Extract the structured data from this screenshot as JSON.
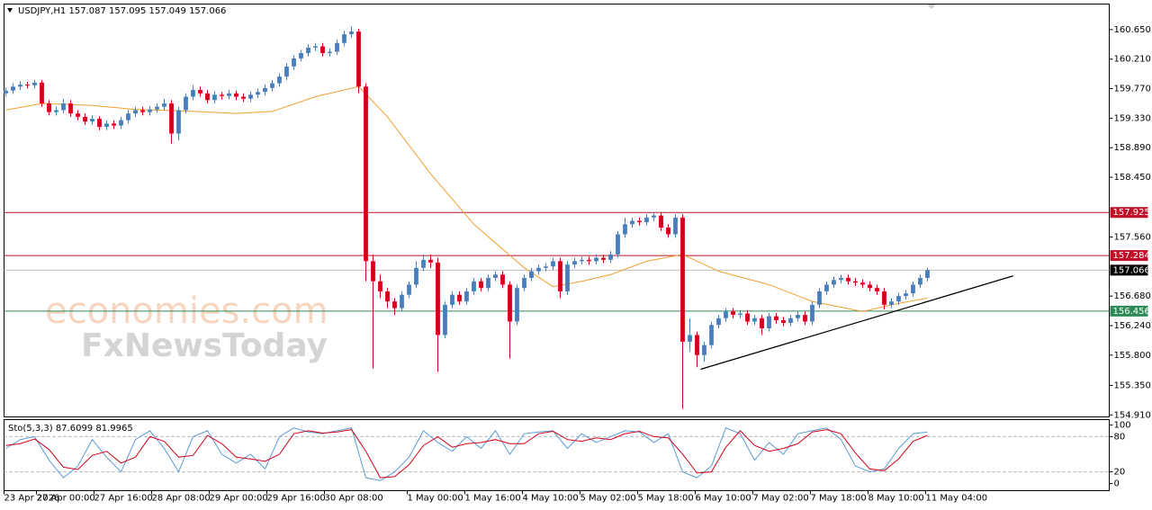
{
  "chart_data": [
    {
      "type": "candlestick",
      "title": "USDJPY,H1 157.087 157.095 157.049 157.066",
      "up_color": "#4a7ebb",
      "down_color": "#d0021b",
      "xlim": [
        -0.25,
        153.25
      ],
      "ylim": [
        154.88,
        161.03
      ],
      "yticks": [
        {
          "value": 160.65,
          "label": "160.650"
        },
        {
          "value": 160.21,
          "label": "160.210"
        },
        {
          "value": 159.77,
          "label": "159.770"
        },
        {
          "value": 159.33,
          "label": "159.330"
        },
        {
          "value": 158.89,
          "label": "158.890"
        },
        {
          "value": 158.45,
          "label": "158.450"
        },
        {
          "value": 157.56,
          "label": "157.560"
        },
        {
          "value": 156.68,
          "label": "156.680"
        },
        {
          "value": 156.24,
          "label": "156.240"
        },
        {
          "value": 155.8,
          "label": "155.800"
        },
        {
          "value": 155.35,
          "label": "155.350"
        },
        {
          "value": 154.91,
          "label": "154.910"
        }
      ],
      "xticks": [
        {
          "value": -0.25,
          "label": "23 Apr 2026"
        },
        {
          "value": 4.25,
          "label": "27 Apr 00:00"
        },
        {
          "value": 12.25,
          "label": "27 Apr 16:00"
        },
        {
          "value": 20.25,
          "label": "28 Apr 08:00"
        },
        {
          "value": 28.25,
          "label": "29 Apr 00:00"
        },
        {
          "value": 36.25,
          "label": "29 Apr 16:00"
        },
        {
          "value": 44.25,
          "label": "30 Apr 08:00"
        },
        {
          "value": 55.75,
          "label": "1 May 00:00"
        },
        {
          "value": 63.75,
          "label": "1 May 16:00"
        },
        {
          "value": 71.75,
          "label": "4 May 10:00"
        },
        {
          "value": 79.75,
          "label": "5 May 02:00"
        },
        {
          "value": 87.75,
          "label": "5 May 18:00"
        },
        {
          "value": 95.75,
          "label": "6 May 10:00"
        },
        {
          "value": 103.75,
          "label": "7 May 02:00"
        },
        {
          "value": 111.75,
          "label": "7 May 18:00"
        },
        {
          "value": 119.75,
          "label": "8 May 10:00"
        },
        {
          "value": 127.75,
          "label": "11 May 04:00"
        }
      ],
      "ohlc": [
        [
          159.7,
          159.79,
          159.65,
          159.74
        ],
        [
          159.74,
          159.85,
          159.69,
          159.8
        ],
        [
          159.8,
          159.88,
          159.75,
          159.83
        ],
        [
          159.83,
          159.87,
          159.77,
          159.82
        ],
        [
          159.82,
          159.9,
          159.77,
          159.86
        ],
        [
          159.86,
          159.9,
          159.5,
          159.55
        ],
        [
          159.55,
          159.6,
          159.37,
          159.42
        ],
        [
          159.42,
          159.5,
          159.37,
          159.45
        ],
        [
          159.45,
          159.62,
          159.4,
          159.55
        ],
        [
          159.55,
          159.6,
          159.35,
          159.4
        ],
        [
          159.4,
          159.45,
          159.3,
          159.35
        ],
        [
          159.35,
          159.4,
          159.23,
          159.28
        ],
        [
          159.28,
          159.37,
          159.23,
          159.32
        ],
        [
          159.32,
          159.36,
          159.15,
          159.2
        ],
        [
          159.2,
          159.3,
          159.15,
          159.25
        ],
        [
          159.25,
          159.3,
          159.17,
          159.22
        ],
        [
          159.22,
          159.35,
          159.17,
          159.3
        ],
        [
          159.3,
          159.45,
          159.25,
          159.4
        ],
        [
          159.4,
          159.5,
          159.35,
          159.45
        ],
        [
          159.45,
          159.5,
          159.37,
          159.42
        ],
        [
          159.42,
          159.51,
          159.37,
          159.46
        ],
        [
          159.46,
          159.55,
          159.41,
          159.5
        ],
        [
          159.5,
          159.62,
          159.45,
          159.55
        ],
        [
          159.55,
          159.6,
          158.95,
          159.1
        ],
        [
          159.1,
          159.5,
          159.0,
          159.45
        ],
        [
          159.45,
          159.7,
          159.4,
          159.65
        ],
        [
          159.65,
          159.82,
          159.6,
          159.75
        ],
        [
          159.75,
          159.8,
          159.65,
          159.7
        ],
        [
          159.7,
          159.75,
          159.55,
          159.6
        ],
        [
          159.6,
          159.73,
          159.55,
          159.68
        ],
        [
          159.68,
          159.72,
          159.61,
          159.66
        ],
        [
          159.66,
          159.75,
          159.61,
          159.7
        ],
        [
          159.7,
          159.74,
          159.6,
          159.65
        ],
        [
          159.65,
          159.7,
          159.57,
          159.62
        ],
        [
          159.62,
          159.73,
          159.57,
          159.68
        ],
        [
          159.68,
          159.77,
          159.63,
          159.72
        ],
        [
          159.72,
          159.83,
          159.67,
          159.78
        ],
        [
          159.78,
          159.9,
          159.73,
          159.85
        ],
        [
          159.85,
          160.0,
          159.8,
          159.95
        ],
        [
          159.95,
          160.15,
          159.9,
          160.1
        ],
        [
          160.1,
          160.27,
          160.05,
          160.22
        ],
        [
          160.22,
          160.35,
          160.17,
          160.3
        ],
        [
          160.3,
          160.43,
          160.25,
          160.38
        ],
        [
          160.38,
          160.45,
          160.33,
          160.4
        ],
        [
          160.4,
          160.45,
          160.25,
          160.3
        ],
        [
          160.3,
          160.37,
          160.25,
          160.32
        ],
        [
          160.32,
          160.5,
          160.27,
          160.45
        ],
        [
          160.45,
          160.63,
          160.4,
          160.58
        ],
        [
          160.58,
          160.7,
          160.53,
          160.62
        ],
        [
          160.62,
          160.66,
          159.7,
          159.8
        ],
        [
          159.8,
          159.85,
          156.9,
          157.2
        ],
        [
          157.2,
          157.3,
          155.6,
          156.9
        ],
        [
          156.9,
          157.0,
          156.65,
          156.75
        ],
        [
          156.75,
          156.8,
          156.5,
          156.6
        ],
        [
          156.6,
          156.65,
          156.4,
          156.5
        ],
        [
          156.5,
          156.75,
          156.45,
          156.7
        ],
        [
          156.7,
          156.9,
          156.65,
          156.85
        ],
        [
          156.85,
          157.2,
          156.8,
          157.1
        ],
        [
          157.1,
          157.3,
          157.05,
          157.22
        ],
        [
          157.22,
          157.3,
          157.1,
          157.18
        ],
        [
          157.18,
          157.25,
          155.55,
          156.1
        ],
        [
          156.1,
          156.6,
          156.05,
          156.55
        ],
        [
          156.55,
          156.75,
          156.5,
          156.7
        ],
        [
          156.7,
          156.75,
          156.55,
          156.6
        ],
        [
          156.6,
          156.8,
          156.55,
          156.75
        ],
        [
          156.75,
          156.95,
          156.7,
          156.9
        ],
        [
          156.9,
          156.95,
          156.75,
          156.8
        ],
        [
          156.8,
          157.0,
          156.75,
          156.95
        ],
        [
          156.95,
          157.05,
          156.9,
          157.0
        ],
        [
          157.0,
          157.05,
          156.8,
          156.85
        ],
        [
          156.85,
          156.9,
          155.75,
          156.3
        ],
        [
          156.3,
          156.85,
          156.25,
          156.8
        ],
        [
          156.8,
          157.0,
          156.75,
          156.95
        ],
        [
          156.95,
          157.1,
          156.9,
          157.05
        ],
        [
          157.05,
          157.15,
          157.0,
          157.1
        ],
        [
          157.1,
          157.17,
          157.05,
          157.12
        ],
        [
          157.12,
          157.25,
          157.07,
          157.2
        ],
        [
          157.2,
          157.25,
          156.65,
          156.75
        ],
        [
          156.75,
          157.2,
          156.7,
          157.15
        ],
        [
          157.15,
          157.25,
          157.1,
          157.2
        ],
        [
          157.2,
          157.27,
          157.15,
          157.22
        ],
        [
          157.22,
          157.27,
          157.15,
          157.2
        ],
        [
          157.2,
          157.3,
          157.15,
          157.25
        ],
        [
          157.25,
          157.3,
          157.17,
          157.22
        ],
        [
          157.22,
          157.35,
          157.17,
          157.3
        ],
        [
          157.3,
          157.65,
          157.25,
          157.6
        ],
        [
          157.6,
          157.85,
          157.55,
          157.75
        ],
        [
          157.75,
          157.85,
          157.7,
          157.8
        ],
        [
          157.8,
          157.85,
          157.73,
          157.78
        ],
        [
          157.78,
          157.9,
          157.73,
          157.85
        ],
        [
          157.85,
          157.93,
          157.8,
          157.88
        ],
        [
          157.88,
          157.92,
          157.65,
          157.7
        ],
        [
          157.7,
          157.75,
          157.55,
          157.6
        ],
        [
          157.6,
          157.9,
          157.55,
          157.85
        ],
        [
          157.85,
          157.9,
          155.0,
          156.0
        ],
        [
          156.0,
          156.35,
          155.85,
          156.1
        ],
        [
          156.1,
          156.15,
          155.62,
          155.8
        ],
        [
          155.8,
          156.0,
          155.7,
          155.95
        ],
        [
          155.95,
          156.3,
          155.9,
          156.25
        ],
        [
          156.25,
          156.4,
          156.2,
          156.35
        ],
        [
          156.35,
          156.5,
          156.3,
          156.45
        ],
        [
          156.45,
          156.5,
          156.35,
          156.4
        ],
        [
          156.4,
          156.47,
          156.35,
          156.42
        ],
        [
          156.42,
          156.47,
          156.25,
          156.3
        ],
        [
          156.3,
          156.4,
          156.25,
          156.35
        ],
        [
          156.35,
          156.4,
          156.1,
          156.2
        ],
        [
          156.2,
          156.43,
          156.15,
          156.38
        ],
        [
          156.38,
          156.43,
          156.27,
          156.32
        ],
        [
          156.32,
          156.37,
          156.23,
          156.28
        ],
        [
          156.28,
          156.4,
          156.23,
          156.35
        ],
        [
          156.35,
          156.45,
          156.3,
          156.4
        ],
        [
          156.4,
          156.45,
          156.25,
          156.3
        ],
        [
          156.3,
          156.6,
          156.25,
          156.55
        ],
        [
          156.55,
          156.8,
          156.5,
          156.75
        ],
        [
          156.75,
          156.9,
          156.7,
          156.85
        ],
        [
          156.85,
          156.97,
          156.8,
          156.92
        ],
        [
          156.92,
          157.0,
          156.87,
          156.95
        ],
        [
          156.95,
          157.0,
          156.85,
          156.9
        ],
        [
          156.9,
          156.95,
          156.83,
          156.88
        ],
        [
          156.88,
          156.93,
          156.8,
          156.85
        ],
        [
          156.85,
          156.9,
          156.75,
          156.8
        ],
        [
          156.8,
          156.85,
          156.7,
          156.75
        ],
        [
          156.75,
          156.8,
          156.48,
          156.55
        ],
        [
          156.55,
          156.65,
          156.5,
          156.6
        ],
        [
          156.6,
          156.73,
          156.55,
          156.68
        ],
        [
          156.68,
          156.77,
          156.63,
          156.72
        ],
        [
          156.72,
          156.9,
          156.67,
          156.85
        ],
        [
          156.85,
          157.0,
          156.8,
          156.95
        ],
        [
          156.95,
          157.1,
          156.9,
          157.066
        ]
      ],
      "ma": {
        "color": "#f0a030",
        "x": [
          0,
          5,
          12,
          18,
          24,
          32,
          37,
          43,
          49,
          53,
          59,
          65,
          72,
          76,
          80,
          84,
          89,
          94,
          99,
          106,
          112,
          119,
          123,
          128
        ],
        "values": [
          159.45,
          159.55,
          159.52,
          159.46,
          159.44,
          159.4,
          159.43,
          159.65,
          159.8,
          159.35,
          158.5,
          157.75,
          157.1,
          156.82,
          156.9,
          157.0,
          157.2,
          157.3,
          157.05,
          156.85,
          156.6,
          156.45,
          156.55,
          156.65
        ]
      },
      "hlines": [
        {
          "value": 157.925,
          "color": "#c0102a",
          "label_color": "#c0102a"
        },
        {
          "value": 157.284,
          "color": "#c0102a",
          "label_color": "#c0102a"
        },
        {
          "value": 157.066,
          "color": "#c0c0c0",
          "label_color": "#000000"
        },
        {
          "value": 156.456,
          "color": "#2e8b57",
          "label_color": "#2e8b57"
        }
      ],
      "trendline": {
        "color": "#000000",
        "x": [
          96.5,
          139.9
        ],
        "values": [
          155.59,
          156.98
        ]
      },
      "watermark": [
        "economies.com",
        "FxNewsToday"
      ]
    },
    {
      "type": "line",
      "title": "Sto(5,3,3) 87.6099 81.9965",
      "ylim": [
        -12,
        109
      ],
      "yticks": [
        100,
        80,
        20,
        0
      ],
      "levels": [
        80,
        20
      ],
      "x": [
        0,
        2,
        4,
        6,
        8,
        10,
        12,
        14,
        16,
        18,
        20,
        22,
        24,
        26,
        28,
        30,
        32,
        34,
        36,
        38,
        40,
        42,
        44,
        46,
        48,
        50,
        52,
        54,
        56,
        58,
        60,
        62,
        64,
        66,
        68,
        70,
        72,
        74,
        76,
        78,
        80,
        82,
        84,
        86,
        88,
        90,
        92,
        94,
        96,
        98,
        100,
        102,
        104,
        106,
        108,
        110,
        112,
        114,
        116,
        118,
        120,
        122,
        124,
        126,
        128
      ],
      "series": [
        {
          "color": "#5b9bd5",
          "values": [
            60,
            75,
            80,
            40,
            10,
            30,
            75,
            45,
            20,
            75,
            90,
            60,
            20,
            80,
            90,
            50,
            35,
            50,
            25,
            80,
            95,
            88,
            85,
            90,
            95,
            10,
            5,
            20,
            45,
            90,
            70,
            55,
            80,
            60,
            90,
            50,
            85,
            88,
            90,
            60,
            85,
            70,
            80,
            90,
            88,
            70,
            85,
            20,
            10,
            30,
            95,
            85,
            40,
            70,
            50,
            85,
            90,
            95,
            75,
            30,
            20,
            25,
            60,
            85,
            88
          ]
        },
        {
          "color": "#d0021b",
          "values": [
            65,
            68,
            76,
            58,
            28,
            24,
            48,
            55,
            35,
            45,
            80,
            72,
            45,
            48,
            82,
            68,
            45,
            42,
            38,
            50,
            85,
            90,
            86,
            88,
            92,
            55,
            10,
            12,
            32,
            65,
            80,
            62,
            68,
            70,
            75,
            68,
            68,
            85,
            89,
            75,
            72,
            78,
            75,
            85,
            89,
            80,
            78,
            50,
            18,
            20,
            62,
            90,
            65,
            55,
            60,
            68,
            88,
            92,
            85,
            52,
            25,
            22,
            42,
            72,
            82
          ]
        }
      ]
    }
  ]
}
